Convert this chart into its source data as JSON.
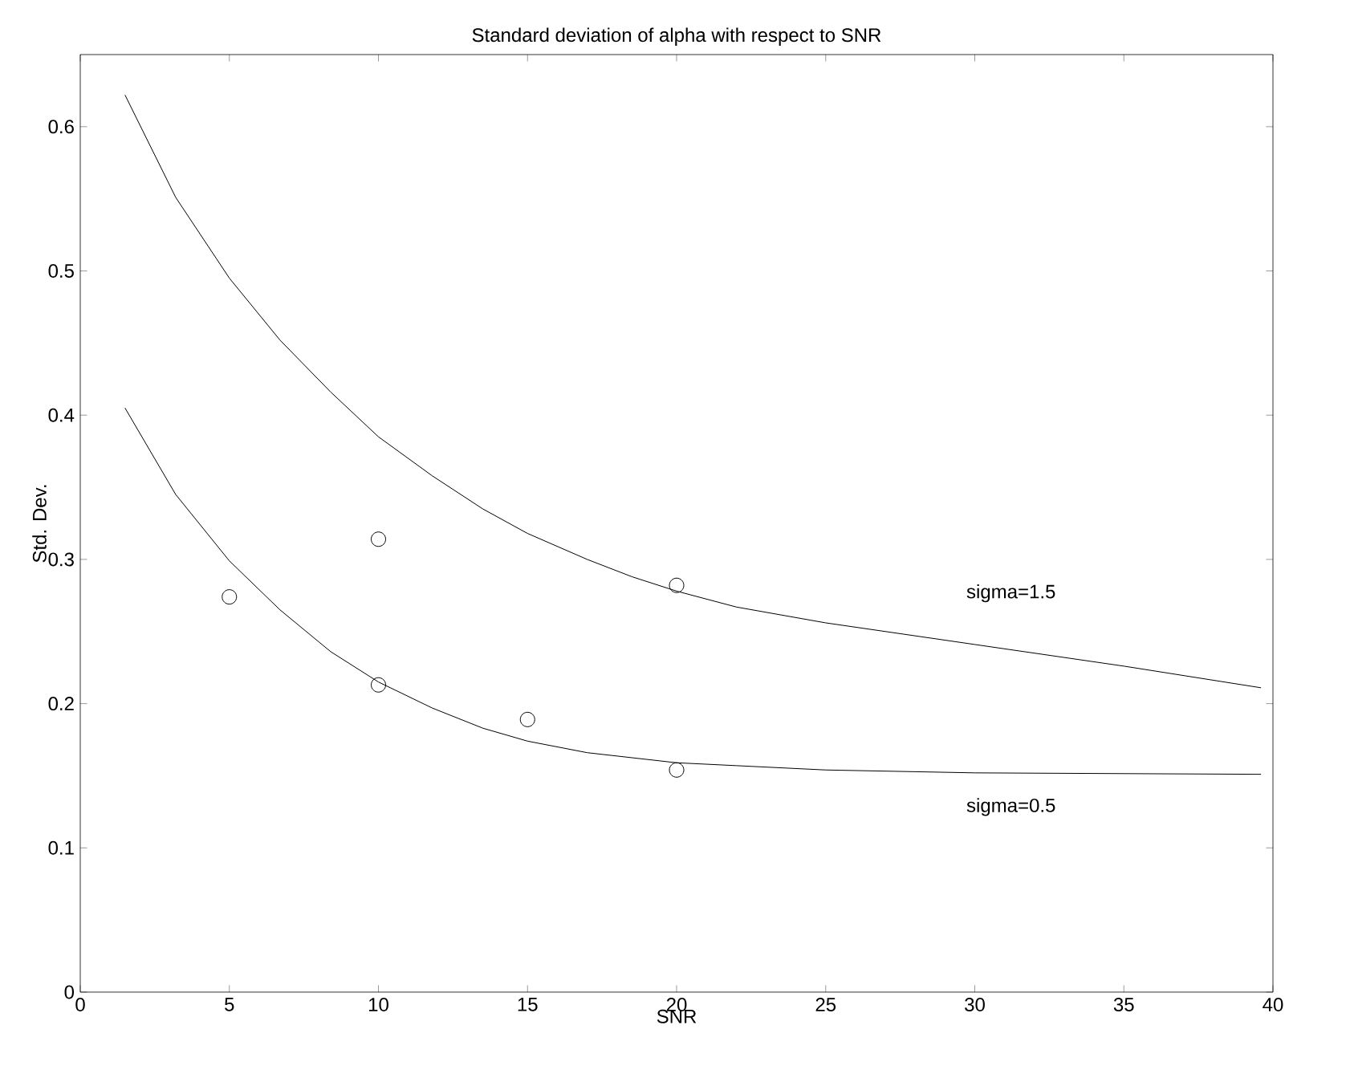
{
  "chart_data": {
    "type": "line",
    "title": "Standard deviation of alpha with respect to SNR",
    "xlabel": "SNR",
    "ylabel": "Std. Dev.",
    "xlim": [
      0,
      40
    ],
    "ylim": [
      0,
      0.65
    ],
    "xticks": [
      0,
      5,
      10,
      15,
      20,
      25,
      30,
      35,
      40
    ],
    "yticks": [
      0,
      0.1,
      0.2,
      0.3,
      0.4,
      0.5,
      0.6
    ],
    "grid": false,
    "legend": false,
    "series": [
      {
        "name": "sigma=1.5",
        "color": "#000000",
        "x": [
          1.5,
          3.2,
          5,
          6.7,
          8.4,
          10,
          11.8,
          13.5,
          15,
          17,
          18.5,
          20,
          22,
          25,
          30,
          35,
          39.6
        ],
        "values": [
          0.622,
          0.551,
          0.495,
          0.452,
          0.416,
          0.385,
          0.358,
          0.335,
          0.318,
          0.3,
          0.288,
          0.278,
          0.267,
          0.256,
          0.241,
          0.226,
          0.211
        ]
      },
      {
        "name": "sigma=0.5",
        "color": "#000000",
        "x": [
          1.5,
          3.2,
          5,
          6.7,
          8.4,
          10,
          11.8,
          13.5,
          15,
          17,
          20,
          22,
          25,
          30,
          39.6
        ],
        "values": [
          0.405,
          0.345,
          0.299,
          0.265,
          0.236,
          0.215,
          0.197,
          0.183,
          0.174,
          0.166,
          0.159,
          0.157,
          0.154,
          0.152,
          0.151
        ]
      },
      {
        "type": "scatter",
        "color": "#000000",
        "marker": "circle",
        "x": [
          5,
          10,
          10,
          15,
          20,
          20
        ],
        "values": [
          0.274,
          0.314,
          0.213,
          0.189,
          0.282,
          0.154
        ]
      }
    ]
  }
}
